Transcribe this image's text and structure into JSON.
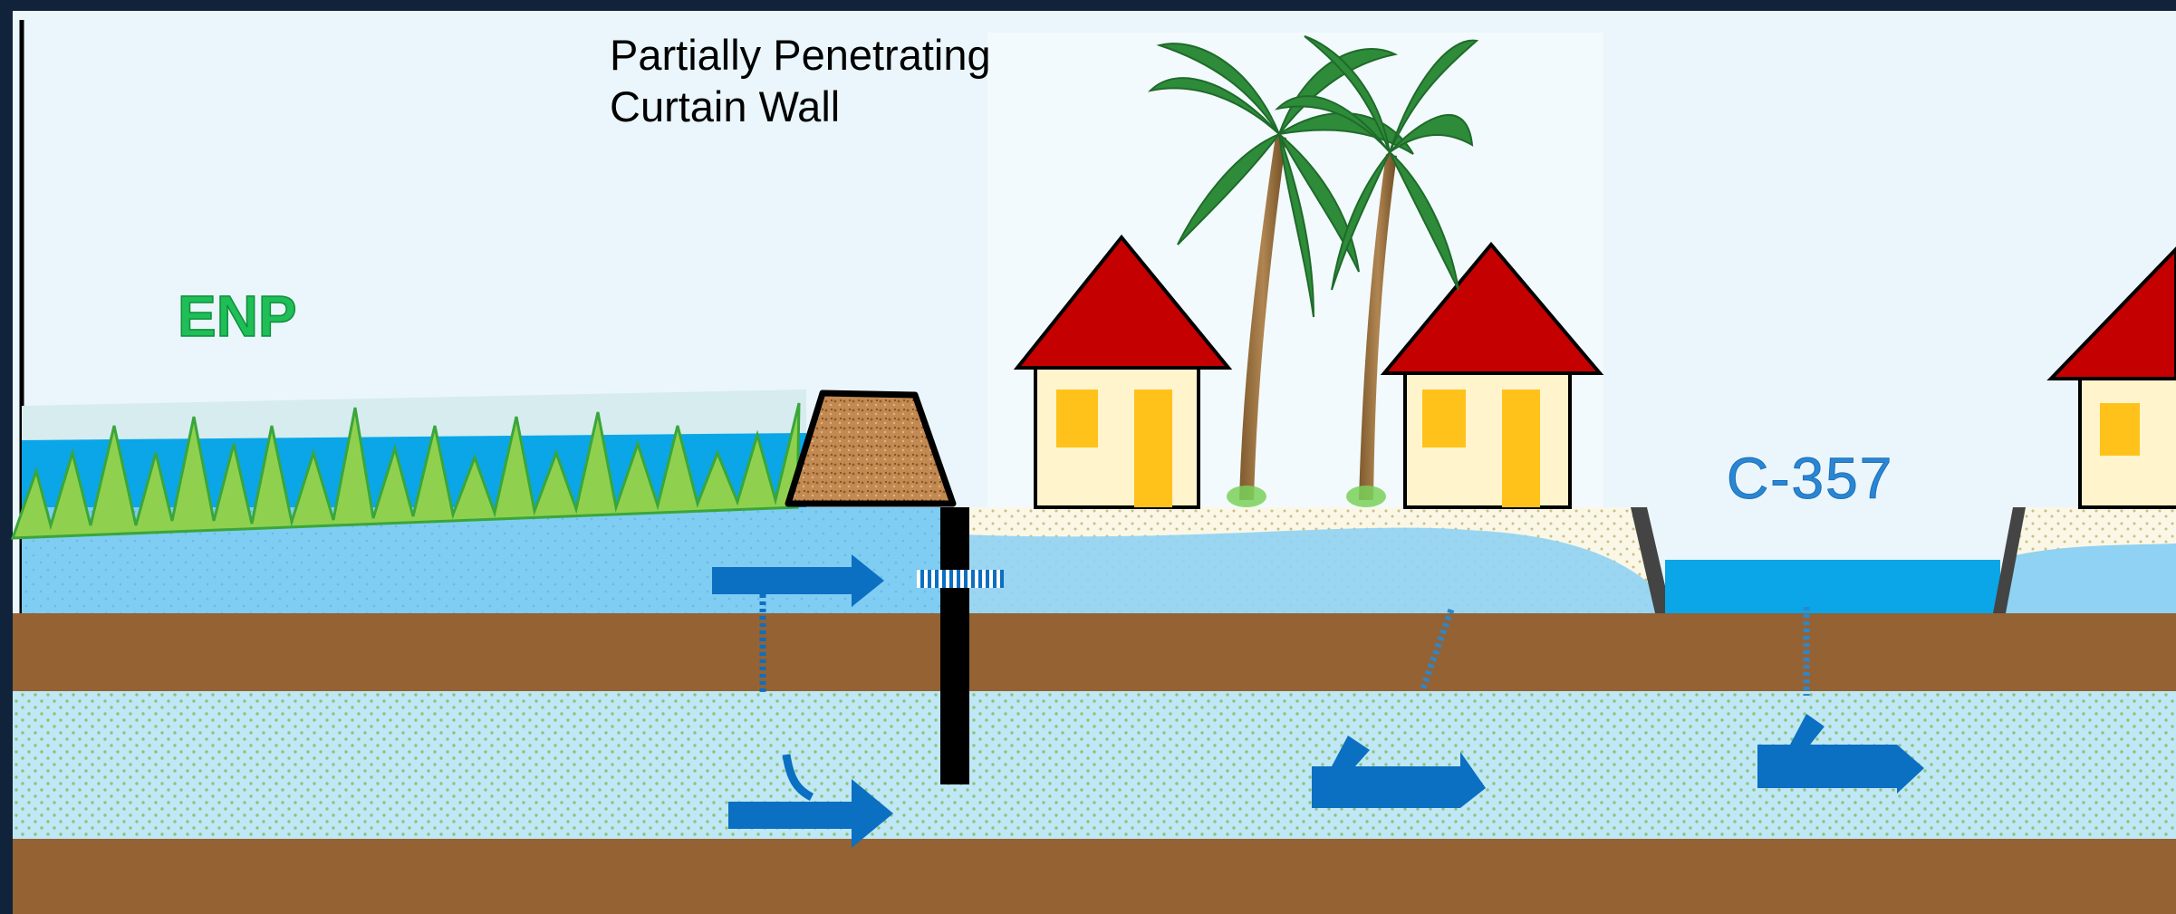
{
  "diagram": {
    "wall_label_line1": "Partially Penetrating",
    "wall_label_line2": "Curtain Wall",
    "park_label": "ENP",
    "canal_label": "C-357"
  },
  "colors": {
    "sky": "#eaf6fb",
    "surface_water": "#7fcdf3",
    "open_water": "#00a3e6",
    "confining_layer": "#946233",
    "aquifer": "#bfe7f6",
    "flow_arrow": "#0b6fc2",
    "grass": "#8fd14f",
    "roof": "#c40000",
    "house_wall": "#fff4cc",
    "window": "#ffc21a",
    "levee": "#c28a52"
  },
  "icons": [
    "palm-tree-icon",
    "house-icon",
    "grass-icon",
    "levee-icon",
    "flow-arrow-icon"
  ]
}
